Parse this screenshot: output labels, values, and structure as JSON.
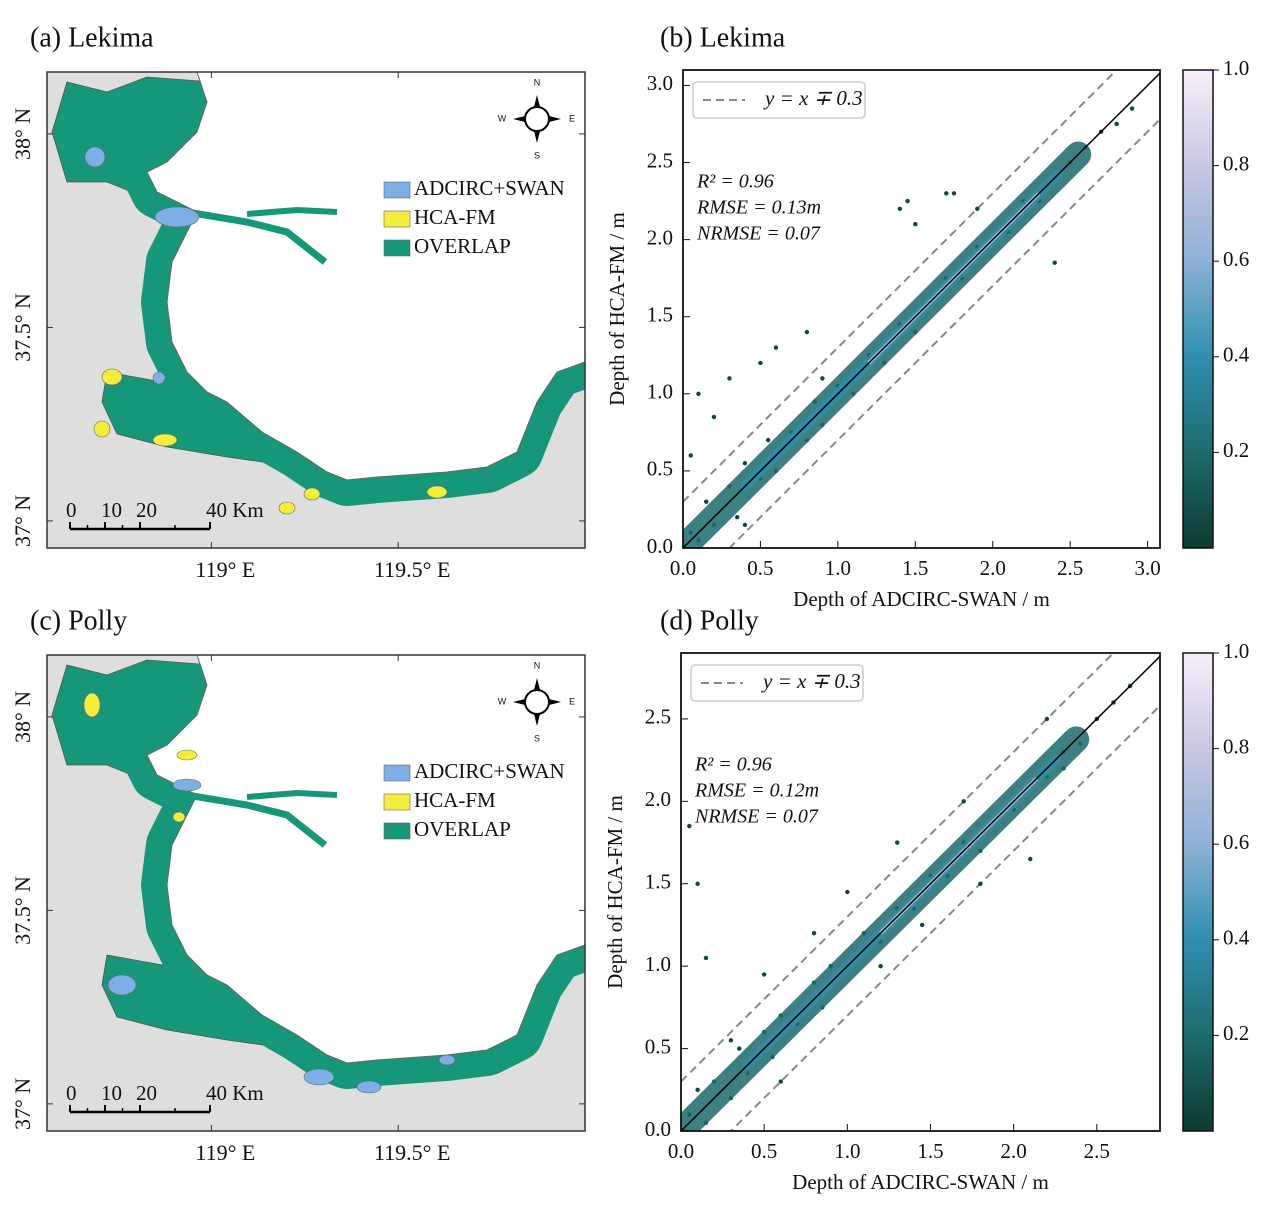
{
  "chart_data": [
    {
      "type": "map",
      "title": "(a) Lekima",
      "xlim": [
        118.56,
        120.0
      ],
      "ylim": [
        36.93,
        38.16
      ],
      "xticks": [
        {
          "value": 119,
          "label": "119° E"
        },
        {
          "value": 119.5,
          "label": "119.5° E"
        }
      ],
      "yticks": [
        {
          "value": 37,
          "label": "37° N"
        },
        {
          "value": 37.5,
          "label": "37.5° N"
        },
        {
          "value": 38,
          "label": "38° N"
        }
      ],
      "series": [
        {
          "name": "ADCIRC+SWAN",
          "color": "#7eaee6"
        },
        {
          "name": "HCA-FM",
          "color": "#f4ee3a"
        },
        {
          "name": "OVERLAP",
          "color": "#17977a"
        }
      ],
      "compass": {
        "n": "N",
        "s": "S",
        "w": "W",
        "e": "E"
      },
      "scale_bar": [
        0,
        10,
        20,
        {
          "value": 40,
          "label": "40 Km"
        }
      ]
    },
    {
      "type": "scatter",
      "title": "(b) Lekima",
      "x_label": "Depth of ADCIRC-SWAN / m",
      "y_label": "Depth of HCA-FM / m",
      "xlim": [
        0,
        3.08
      ],
      "ylim": [
        0,
        3.1
      ],
      "xticks": [
        {
          "value": 0,
          "label": "0.0"
        },
        0.5,
        {
          "value": 1,
          "label": "1.0"
        },
        1.5,
        {
          "value": 2,
          "label": "2.0"
        },
        2.5,
        {
          "value": 3,
          "label": "3.0"
        }
      ],
      "yticks": [
        {
          "value": 0,
          "label": "0.0"
        },
        0.5,
        {
          "value": 1,
          "label": "1.0"
        },
        1.5,
        {
          "value": 2,
          "label": "2.0"
        },
        2.5,
        {
          "value": 3,
          "label": "3.0"
        }
      ],
      "x": [
        0.05,
        0.1,
        0.15,
        0.2,
        0.3,
        0.35,
        0.4,
        0.5,
        0.55,
        0.6,
        0.7,
        0.8,
        0.85,
        0.9,
        1.0,
        1.1,
        1.2,
        1.3,
        1.4,
        1.5,
        1.6,
        1.7,
        1.8,
        1.9,
        2.0,
        2.1,
        2.2,
        2.3,
        2.4,
        2.5,
        2.6,
        2.7,
        2.8,
        2.9,
        0.1,
        0.3,
        0.2,
        0.5,
        0.6,
        0.8,
        0.9,
        1.4,
        1.45,
        1.5,
        1.7,
        1.75,
        1.9,
        2.4,
        0.05,
        0.4
      ],
      "y": [
        0.1,
        0.05,
        0.3,
        0.15,
        0.4,
        0.2,
        0.55,
        0.45,
        0.7,
        0.5,
        0.75,
        0.7,
        0.95,
        0.8,
        1.05,
        1.0,
        1.25,
        1.2,
        1.45,
        1.4,
        1.6,
        1.75,
        1.75,
        1.95,
        2.0,
        2.05,
        2.25,
        2.25,
        2.4,
        2.5,
        2.6,
        2.7,
        2.75,
        2.85,
        1.0,
        1.1,
        0.85,
        1.2,
        1.3,
        1.4,
        1.1,
        2.2,
        2.25,
        2.1,
        2.3,
        2.3,
        2.2,
        1.85,
        0.6,
        0.15
      ],
      "color": "#0b4a3a",
      "identity_line": true,
      "band": {
        "name": "y = x ∓ 0.3",
        "offset": 0.3,
        "color": "#888888"
      },
      "annotations": [
        "R² = 0.96",
        "RMSE = 0.13m",
        "NRMSE = 0.07"
      ],
      "colorbar": {
        "lim": [
          0,
          1
        ],
        "ticks": [
          0.2,
          0.4,
          0.6,
          0.8,
          {
            "value": 1,
            "label": "1.0"
          }
        ],
        "colors": [
          "#0d3b30",
          "#1d6b6d",
          "#2f8fb0",
          "#8cb2d6",
          "#c9c6e4",
          "#f7eff8"
        ]
      }
    },
    {
      "type": "map",
      "title": "(c) Polly",
      "xlim": [
        118.56,
        120.0
      ],
      "ylim": [
        36.93,
        38.16
      ],
      "xticks": [
        {
          "value": 119,
          "label": "119° E"
        },
        {
          "value": 119.5,
          "label": "119.5° E"
        }
      ],
      "yticks": [
        {
          "value": 37,
          "label": "37° N"
        },
        {
          "value": 37.5,
          "label": "37.5° N"
        },
        {
          "value": 38,
          "label": "38° N"
        }
      ],
      "series": [
        {
          "name": "ADCIRC+SWAN",
          "color": "#7eaee6"
        },
        {
          "name": "HCA-FM",
          "color": "#f4ee3a"
        },
        {
          "name": "OVERLAP",
          "color": "#17977a"
        }
      ],
      "compass": {
        "n": "N",
        "s": "S",
        "w": "W",
        "e": "E"
      },
      "scale_bar": [
        0,
        10,
        20,
        {
          "value": 40,
          "label": "40 Km"
        }
      ]
    },
    {
      "type": "scatter",
      "title": "(d) Polly",
      "x_label": "Depth of ADCIRC-SWAN / m",
      "y_label": "Depth of HCA-FM / m",
      "xlim": [
        0,
        2.88
      ],
      "ylim": [
        0,
        2.9
      ],
      "xticks": [
        {
          "value": 0,
          "label": "0.0"
        },
        0.5,
        {
          "value": 1,
          "label": "1.0"
        },
        1.5,
        {
          "value": 2,
          "label": "2.0"
        },
        2.5
      ],
      "yticks": [
        {
          "value": 0,
          "label": "0.0"
        },
        0.5,
        {
          "value": 1,
          "label": "1.0"
        },
        1.5,
        {
          "value": 2,
          "label": "2.0"
        },
        2.5
      ],
      "x": [
        0.05,
        0.1,
        0.15,
        0.2,
        0.3,
        0.35,
        0.4,
        0.5,
        0.55,
        0.6,
        0.7,
        0.8,
        0.85,
        0.9,
        1.0,
        1.1,
        1.2,
        1.3,
        1.4,
        1.5,
        1.6,
        1.7,
        1.8,
        1.9,
        2.0,
        2.1,
        2.2,
        2.3,
        2.4,
        2.5,
        2.6,
        2.7,
        0.05,
        0.1,
        0.15,
        0.5,
        0.8,
        1.0,
        1.3,
        1.45,
        1.7,
        1.8,
        2.1,
        2.2,
        2.3,
        1.2,
        0.6,
        0.3
      ],
      "y": [
        0.1,
        0.25,
        0.05,
        0.3,
        0.2,
        0.5,
        0.35,
        0.6,
        0.45,
        0.7,
        0.65,
        0.9,
        0.75,
        1.0,
        1.0,
        1.2,
        1.15,
        1.35,
        1.35,
        1.55,
        1.55,
        1.75,
        1.7,
        1.9,
        1.95,
        2.1,
        2.15,
        2.3,
        2.35,
        2.5,
        2.6,
        2.7,
        1.85,
        1.5,
        1.05,
        0.95,
        1.2,
        1.45,
        1.75,
        1.25,
        2.0,
        1.5,
        1.65,
        2.5,
        2.2,
        1.0,
        0.3,
        0.55
      ],
      "color": "#0b4a3a",
      "identity_line": true,
      "band": {
        "name": "y = x ∓ 0.3",
        "offset": 0.3,
        "color": "#888888"
      },
      "annotations": [
        "R² = 0.96",
        "RMSE = 0.12m",
        "NRMSE = 0.07"
      ],
      "colorbar": {
        "lim": [
          0,
          1
        ],
        "ticks": [
          0.2,
          0.4,
          0.6,
          0.8,
          {
            "value": 1,
            "label": "1.0"
          }
        ],
        "colors": [
          "#0d3b30",
          "#1d6b6d",
          "#2f8fb0",
          "#8cb2d6",
          "#c9c6e4",
          "#f7eff8"
        ]
      }
    }
  ]
}
